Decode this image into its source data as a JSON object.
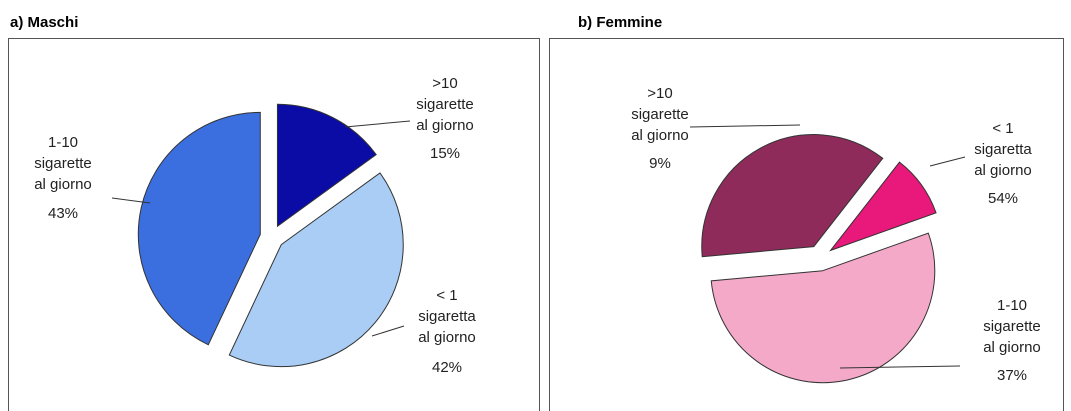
{
  "chart_data": [
    {
      "type": "pie",
      "title": "a)   Maschi",
      "categories": [
        ">10\nsigarette\nal giorno",
        "< 1\nsigaretta\nal giorno",
        "1-10\nsigarette\nal giorno"
      ],
      "values": [
        15,
        42,
        43
      ],
      "value_labels": [
        "15%",
        "42%",
        "43%"
      ],
      "colors": [
        "#0b0ba6",
        "#a9cdf5",
        "#3b6fe0"
      ]
    },
    {
      "type": "pie",
      "title": "b) Femmine",
      "categories": [
        ">10\nsigarette\nal giorno",
        "< 1\nsigaretta\nal giorno",
        "1-10\nsigarette\nal giorno"
      ],
      "values": [
        9,
        54,
        37
      ],
      "value_labels": [
        "9%",
        "54%",
        "37%"
      ],
      "colors": [
        "#e8197a",
        "#f5a9c9",
        "#8e2b5b"
      ]
    }
  ]
}
